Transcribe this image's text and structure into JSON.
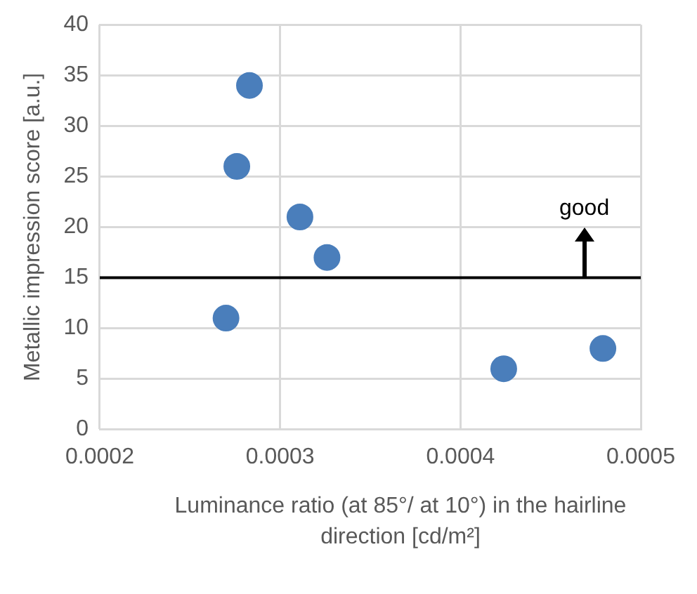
{
  "chart_data": {
    "type": "scatter",
    "xlabel": "Luminance ratio (at 85°/   at 10°) in the hairline direction  [cd/m²]",
    "ylabel": "Metallic impression score [a.u.]",
    "x": [
      0.000283,
      0.000276,
      0.000311,
      0.000326,
      0.00027,
      0.000424,
      0.000479
    ],
    "series": [
      {
        "color": "#4a7ebb",
        "values": [
          34,
          26,
          21,
          17,
          11,
          6,
          8
        ]
      }
    ],
    "xlim": [
      0.0002,
      0.0005
    ],
    "xticks": [
      0.0002,
      0.0003,
      0.0004,
      0.0005
    ],
    "ylim": [
      0,
      40
    ],
    "yticks": [
      0,
      5,
      10,
      15,
      20,
      25,
      30,
      35,
      40
    ],
    "ref_lines": [
      {
        "axis": "y",
        "value": 15,
        "color": "#000000"
      }
    ],
    "annotations": [
      "good"
    ],
    "grid": true,
    "legend": false,
    "marker": "circle"
  }
}
